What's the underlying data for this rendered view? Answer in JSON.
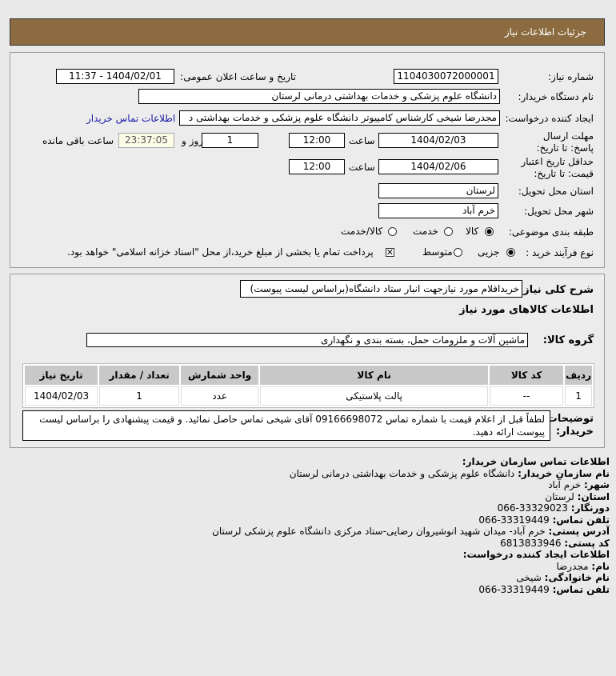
{
  "header": {
    "title": "جزئیات اطلاعات نیاز"
  },
  "form": {
    "need_number_label": "شماره نیاز:",
    "need_number": "1104030072000001",
    "announce_label": "تاریخ و ساعت اعلان عمومی:",
    "announce_value": "1404/02/01 - 11:37",
    "buyer_label": "نام دستگاه خریدار:",
    "buyer_value": "دانشگاه علوم پزشکی و خدمات بهداشتی درمانی لرستان",
    "creator_label": "ایجاد کننده درخواست:",
    "creator_value": "مجدرضا شیخی کارشناس کامپیوتر دانشگاه علوم پزشکی و خدمات بهداشتی د",
    "contact_link": "اطلاعات تماس خریدار",
    "deadline_label": "مهلت ارسال پاسخ: تا تاریخ:",
    "deadline_date": "1404/02/03",
    "time_label": "ساعت",
    "deadline_time": "12:00",
    "days_value": "1",
    "days_label": "روز و",
    "remaining_value": "23:37:05",
    "remaining_label": "ساعت باقی مانده",
    "validity_label": "حداقل تاریخ اعتبار قیمت: تا تاریخ:",
    "validity_date": "1404/02/06",
    "validity_time": "12:00",
    "province_label": "استان محل تحویل:",
    "province_value": "لرستان",
    "city_label": "شهر محل تحویل:",
    "city_value": "خرم آباد",
    "category_label": "طبقه بندی موضوعی:",
    "category_options": [
      "کالا",
      "خدمت",
      "کالا/خدمت"
    ],
    "category_selected": "کالا",
    "process_label": "نوع فرآیند خرید :",
    "process_options": [
      "جزیی",
      "متوسط"
    ],
    "process_selected": "جزیی",
    "payment_note": "پرداخت تمام یا بخشی از مبلغ خرید،از محل \"اسناد خزانه اسلامی\" خواهد بود.",
    "payment_checked": true
  },
  "details": {
    "summary_label": "شرح کلی نیاز:",
    "summary_value": "خریداقلام مورد نیازجهت انبار ستاد دانشگاه(براساس لیست پیوست)",
    "goods_title": "اطلاعات کالاهای مورد نیاز",
    "group_label": "گروه کالا:",
    "group_value": "ماشین آلات و ملزومات حمل، بسته بندی و نگهداری",
    "table": {
      "headers": [
        "ردیف",
        "کد کالا",
        "نام کالا",
        "واحد شمارش",
        "تعداد / مقدار",
        "تاریخ نیاز"
      ],
      "rows": [
        [
          "1",
          "--",
          "پالت پلاستیکی",
          "عدد",
          "1",
          "1404/02/03"
        ]
      ]
    },
    "notes_label": "توضیحات خریدار:",
    "notes_value": "لطفاً قبل از اعلام قیمت با شماره تماس 09166698072 آقای شیخی تماس حاصل نمائید. و قیمت پیشنهادی را براساس لیست پیوست ارائه دهید."
  },
  "contact": {
    "org_title": "اطلاعات تماس سازمان خریدار:",
    "org_name_label": "نام سازمان خریدار:",
    "org_name": "دانشگاه علوم پزشکی و خدمات بهداشتی درمانی لرستان",
    "city_label": "شهر:",
    "city": "خرم آباد",
    "province_label": "استان:",
    "province": "لرستان",
    "fax_label": "دورنگار:",
    "fax": "066-33329023",
    "phone_label": "تلفن تماس:",
    "phone": "066-33319449",
    "address_label": "آدرس پستی:",
    "address": "خرم آباد- میدان شهید انوشیروان رضایی-ستاد مرکزی دانشگاه علوم پزشکی لرستان",
    "postal_label": "کد پستی:",
    "postal": "6813833946",
    "creator_title": "اطلاعات ایجاد کننده درخواست:",
    "first_name_label": "نام:",
    "first_name": "مجدرضا",
    "last_name_label": "نام خانوادگی:",
    "last_name": "شیخی",
    "creator_phone_label": "تلفن تماس:",
    "creator_phone": "066-33319449"
  }
}
